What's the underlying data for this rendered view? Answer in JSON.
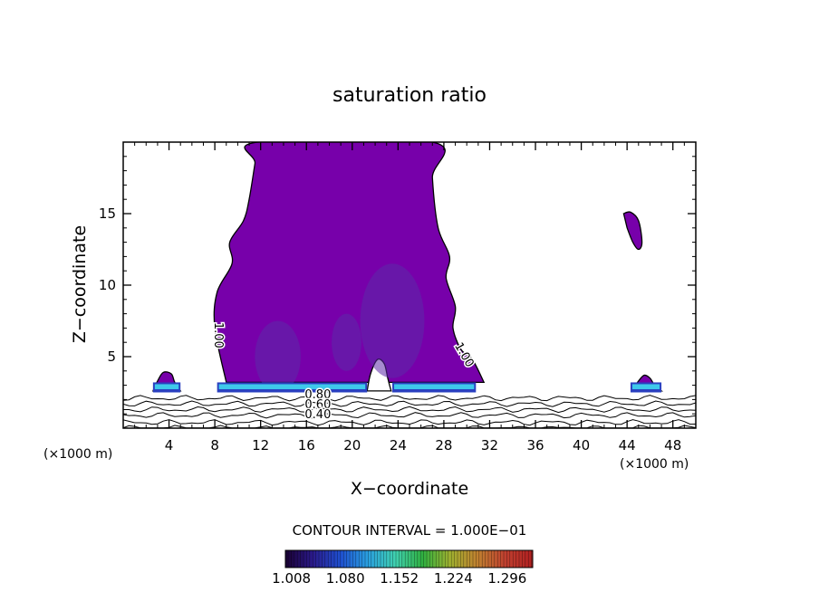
{
  "chart_data": {
    "type": "heatmap",
    "title": "saturation ratio",
    "xlabel": "X−coordinate",
    "ylabel": "Z−coordinate",
    "x_unit_left": "(×1000 m)",
    "x_unit_right": "(×1000 m)",
    "xlim": [
      0,
      50
    ],
    "ylim": [
      0,
      20
    ],
    "x_ticks": [
      4,
      8,
      12,
      16,
      20,
      24,
      28,
      32,
      36,
      40,
      44,
      48
    ],
    "y_ticks": [
      5,
      10,
      15
    ],
    "contour_interval_text": "CONTOUR INTERVAL = 1.000E−01",
    "colorbar": {
      "labels": [
        "1.008",
        "1.080",
        "1.152",
        "1.224",
        "1.296"
      ],
      "range": [
        1.0,
        1.33
      ],
      "colors": [
        "#1a0033",
        "#2a1a8a",
        "#1f4fd0",
        "#2aa0e0",
        "#40d0b0",
        "#30b040",
        "#a0b030",
        "#c08030",
        "#c04030",
        "#b02020"
      ]
    },
    "fill_color": "#7700aa",
    "contour_labels": [
      {
        "text": "1.00",
        "x": 8.0,
        "y": 6.5,
        "rotate": 90
      },
      {
        "text": "1.00",
        "x": 29.5,
        "y": 5.0,
        "rotate": 60
      },
      {
        "text": "0.80",
        "x": 17.0,
        "y": 2.1,
        "rotate": 0
      },
      {
        "text": "0.60",
        "x": 17.0,
        "y": 1.4,
        "rotate": 0
      },
      {
        "text": "0.40",
        "x": 17.0,
        "y": 0.7,
        "rotate": 0
      }
    ],
    "regions": [
      {
        "name": "main-cloud",
        "value": 1.008,
        "outline": [
          [
            9.0,
            3.2
          ],
          [
            8.0,
            7.0
          ],
          [
            8.2,
            9.5
          ],
          [
            9.5,
            11.5
          ],
          [
            9.3,
            13.0
          ],
          [
            10.5,
            14.5
          ],
          [
            11.0,
            16.0
          ],
          [
            11.5,
            18.5
          ],
          [
            11.8,
            20
          ],
          [
            27.0,
            20
          ],
          [
            27.0,
            17.5
          ],
          [
            27.5,
            14.0
          ],
          [
            28.5,
            12.0
          ],
          [
            28.2,
            10.5
          ],
          [
            29.0,
            8.5
          ],
          [
            28.8,
            7.0
          ],
          [
            29.5,
            5.5
          ],
          [
            30.5,
            4.8
          ],
          [
            31.5,
            3.2
          ]
        ]
      },
      {
        "name": "cloud-gap",
        "value": 0.95,
        "outline": [
          [
            21.3,
            2.6
          ],
          [
            21.6,
            3.8
          ],
          [
            22.2,
            4.8
          ],
          [
            22.8,
            4.5
          ],
          [
            23.1,
            3.5
          ],
          [
            23.4,
            2.6
          ]
        ]
      },
      {
        "name": "small-cloud-left",
        "value": 1.008,
        "outline": [
          [
            2.6,
            2.6
          ],
          [
            3.0,
            3.3
          ],
          [
            3.5,
            3.9
          ],
          [
            4.2,
            3.8
          ],
          [
            4.5,
            3.2
          ],
          [
            5.0,
            2.6
          ]
        ]
      },
      {
        "name": "small-cloud-right",
        "value": 1.008,
        "outline": [
          [
            44.4,
            2.6
          ],
          [
            45.0,
            3.3
          ],
          [
            45.5,
            3.7
          ],
          [
            46.0,
            3.5
          ],
          [
            46.4,
            3.0
          ],
          [
            47.0,
            2.6
          ]
        ]
      },
      {
        "name": "upper-right-cloud",
        "value": 1.008,
        "outline": [
          [
            43.7,
            15.0
          ],
          [
            44.3,
            15.1
          ],
          [
            45.0,
            14.5
          ],
          [
            45.3,
            13.0
          ],
          [
            45.0,
            12.5
          ],
          [
            44.5,
            13.0
          ],
          [
            44.0,
            14.0
          ]
        ]
      }
    ],
    "dark_patches": [
      {
        "x": 13.5,
        "y": 5.0,
        "rx": 2.0,
        "ry": 2.5,
        "value": 1.03
      },
      {
        "x": 23.5,
        "y": 7.5,
        "rx": 2.8,
        "ry": 4.0,
        "value": 1.03
      },
      {
        "x": 19.5,
        "y": 6.0,
        "rx": 1.3,
        "ry": 2.0,
        "value": 1.02
      }
    ],
    "base_band": [
      {
        "x0": 2.6,
        "x1": 5.0
      },
      {
        "x0": 8.2,
        "x1": 21.3
      },
      {
        "x0": 23.5,
        "x1": 30.8
      },
      {
        "x0": 44.3,
        "x1": 47.0
      }
    ],
    "base_band_y": [
      2.5,
      3.2
    ],
    "surface_contours": [
      0.0,
      0.4,
      0.9,
      1.3,
      1.7,
      2.1
    ]
  }
}
